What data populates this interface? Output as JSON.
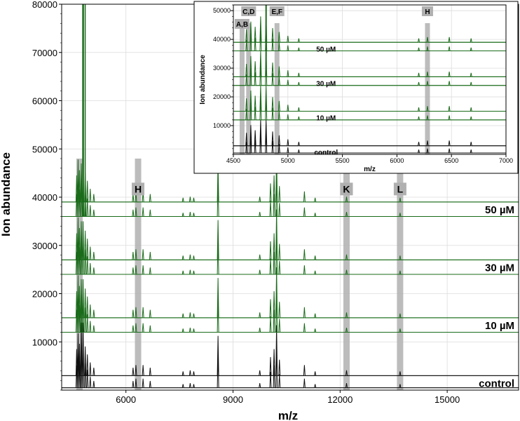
{
  "chart_data": {
    "type": "line",
    "xlabel": "m/z",
    "ylabel": "Ion abundance",
    "xlim": [
      4200,
      17000
    ],
    "ylim": [
      0,
      80000
    ],
    "x_ticks": [
      6000,
      9000,
      12000,
      15000
    ],
    "y_ticks": [
      10000,
      20000,
      30000,
      40000,
      50000,
      60000,
      70000,
      80000
    ],
    "grid": true,
    "colors": {
      "control": "#111111",
      "treated": "#1a6b1a",
      "band": "#b0b0b0",
      "label_box": "#b0b0b0"
    },
    "conditions": [
      {
        "label": "control",
        "baselines": [
          500,
          3000
        ]
      },
      {
        "label": "10 µM",
        "baselines": [
          12000,
          15000
        ]
      },
      {
        "label": "30 µM",
        "baselines": [
          24000,
          27000
        ]
      },
      {
        "label": "50 µM",
        "baselines": [
          36000,
          39000
        ]
      }
    ],
    "peak_regions": [
      {
        "label": "",
        "x": 4700
      },
      {
        "label": "H",
        "x": 6340
      },
      {
        "label": "K",
        "x": 12180
      },
      {
        "label": "L",
        "x": 13680
      }
    ],
    "peaks": [
      {
        "x": 4620,
        "h": 0.5
      },
      {
        "x": 4660,
        "h": 0.8
      },
      {
        "x": 4700,
        "h": 0.6
      },
      {
        "x": 4750,
        "h": 1.0
      },
      {
        "x": 4800,
        "h": 1.0
      },
      {
        "x": 4860,
        "h": 0.55
      },
      {
        "x": 4920,
        "h": 0.4
      },
      {
        "x": 5000,
        "h": 0.25
      },
      {
        "x": 5100,
        "h": 0.15
      },
      {
        "x": 6200,
        "h": 0.15
      },
      {
        "x": 6280,
        "h": 0.2
      },
      {
        "x": 6480,
        "h": 0.2
      },
      {
        "x": 6680,
        "h": 0.15
      },
      {
        "x": 7600,
        "h": 0.08
      },
      {
        "x": 7800,
        "h": 0.1
      },
      {
        "x": 7900,
        "h": 0.08
      },
      {
        "x": 8580,
        "h": 0.75
      },
      {
        "x": 9750,
        "h": 0.1
      },
      {
        "x": 10050,
        "h": 0.35
      },
      {
        "x": 10150,
        "h": 0.5
      },
      {
        "x": 10220,
        "h": 0.95
      },
      {
        "x": 10300,
        "h": 0.3
      },
      {
        "x": 11000,
        "h": 0.2
      },
      {
        "x": 11300,
        "h": 0.08
      },
      {
        "x": 12180,
        "h": 0.1
      },
      {
        "x": 13680,
        "h": 0.08
      }
    ],
    "inset": {
      "xlabel": "m/z",
      "ylabel": "Ion abundance",
      "xlim": [
        4500,
        7000
      ],
      "ylim": [
        0,
        52000
      ],
      "x_ticks": [
        4500,
        5000,
        5500,
        6000,
        6500,
        7000
      ],
      "y_ticks": [
        10000,
        20000,
        30000,
        40000,
        50000
      ],
      "conditions": [
        {
          "label": "control",
          "baselines": [
            500,
            3000
          ]
        },
        {
          "label": "10 µM",
          "baselines": [
            12000,
            15000
          ]
        },
        {
          "label": "30 µM",
          "baselines": [
            24000,
            27000
          ]
        },
        {
          "label": "50 µM",
          "baselines": [
            36000,
            39000
          ]
        }
      ],
      "peak_regions": [
        {
          "label": "A,B",
          "x": 4580
        },
        {
          "label": "C,D",
          "x": 4640
        },
        {
          "label": "E,F",
          "x": 4900
        },
        {
          "label": "H",
          "x": 6280
        }
      ]
    }
  }
}
